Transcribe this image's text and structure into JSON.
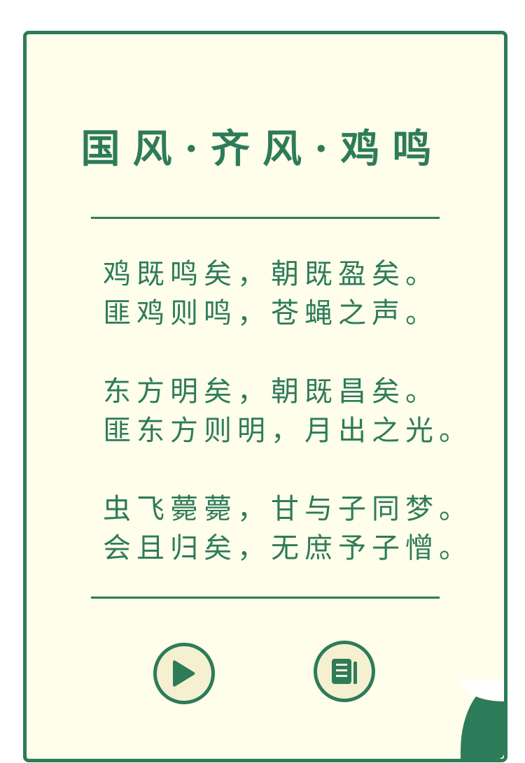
{
  "title": "国风·齐风·鸡鸣",
  "poem": {
    "stanzas": [
      [
        "鸡既鸣矣，朝既盈矣。",
        "匪鸡则鸣，苍蝇之声。"
      ],
      [
        "东方明矣，朝既昌矣。",
        "匪东方则明，月出之光。"
      ],
      [
        "虫飞薨薨，甘与子同梦。",
        "会且归矣，无庶予子憎。"
      ]
    ]
  },
  "icons": {
    "play": "play-icon",
    "text": "document-text-icon"
  },
  "colors": {
    "accent": "#2e7b59",
    "paper": "#fefeeb",
    "button_fill": "#f4f0d0"
  }
}
